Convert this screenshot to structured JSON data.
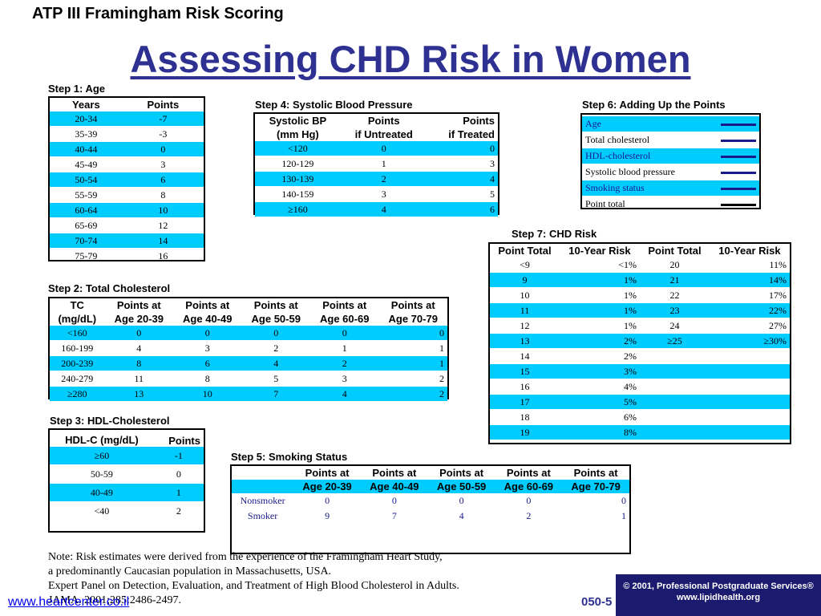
{
  "header": "ATP III Framingham Risk Scoring",
  "title": "Assessing CHD Risk in Women",
  "step1": {
    "label": "Step 1: Age",
    "headers": [
      "Years",
      "Points"
    ],
    "rows": [
      [
        "20-34",
        "-7"
      ],
      [
        "35-39",
        "-3"
      ],
      [
        "40-44",
        "0"
      ],
      [
        "45-49",
        "3"
      ],
      [
        "50-54",
        "6"
      ],
      [
        "55-59",
        "8"
      ],
      [
        "60-64",
        "10"
      ],
      [
        "65-69",
        "12"
      ],
      [
        "70-74",
        "14"
      ],
      [
        "75-79",
        "16"
      ]
    ]
  },
  "step2": {
    "label": "Step 2: Total Cholesterol",
    "headers_line1": [
      "TC",
      "Points at",
      "Points at",
      "Points at",
      "Points at",
      "Points at"
    ],
    "headers_line2": [
      "(mg/dL)",
      "Age 20-39",
      "Age 40-49",
      "Age 50-59",
      "Age 60-69",
      "Age 70-79"
    ],
    "rows": [
      [
        "<160",
        "0",
        "0",
        "0",
        "0",
        "0"
      ],
      [
        "160-199",
        "4",
        "3",
        "2",
        "1",
        "1"
      ],
      [
        "200-239",
        "8",
        "6",
        "4",
        "2",
        "1"
      ],
      [
        "240-279",
        "11",
        "8",
        "5",
        "3",
        "2"
      ],
      [
        "≥280",
        "13",
        "10",
        "7",
        "4",
        "2"
      ]
    ]
  },
  "step3": {
    "label": "Step 3: HDL-Cholesterol",
    "headers": [
      "HDL-C (mg/dL)",
      "Points"
    ],
    "rows": [
      [
        "≥60",
        "-1"
      ],
      [
        "50-59",
        "0"
      ],
      [
        "40-49",
        "1"
      ],
      [
        "<40",
        "2"
      ]
    ]
  },
  "step4": {
    "label": "Step 4: Systolic Blood Pressure",
    "headers_line1": [
      "Systolic BP",
      "Points",
      "Points"
    ],
    "headers_line2": [
      "(mm Hg)",
      "if Untreated",
      "if Treated"
    ],
    "rows": [
      [
        "<120",
        "0",
        "0"
      ],
      [
        "120-129",
        "1",
        "3"
      ],
      [
        "130-139",
        "2",
        "4"
      ],
      [
        "140-159",
        "3",
        "5"
      ],
      [
        "≥160",
        "4",
        "6"
      ]
    ]
  },
  "step5": {
    "label": "Step 5: Smoking Status",
    "headers_line1": [
      "",
      "Points at",
      "Points at",
      "Points at",
      "Points at",
      "Points at"
    ],
    "headers_line2": [
      "",
      "Age 20-39",
      "Age 40-49",
      "Age 50-59",
      "Age 60-69",
      "Age 70-79"
    ],
    "rows": [
      [
        "Nonsmoker",
        "0",
        "0",
        "0",
        "0",
        "0"
      ],
      [
        "Smoker",
        "9",
        "7",
        "4",
        "2",
        "1"
      ]
    ]
  },
  "step6": {
    "label": "Step 6: Adding Up the Points",
    "items": [
      "Age",
      "Total cholesterol",
      "HDL-cholesterol",
      "Systolic blood pressure",
      "Smoking status",
      "Point total"
    ]
  },
  "step7": {
    "label": "Step 7: CHD Risk",
    "headers": [
      "Point Total",
      "10-Year Risk",
      "Point Total",
      "10-Year Risk"
    ],
    "rows": [
      [
        "<9",
        "<1%",
        "20",
        "11%"
      ],
      [
        "9",
        "1%",
        "21",
        "14%"
      ],
      [
        "10",
        "1%",
        "22",
        "17%"
      ],
      [
        "11",
        "1%",
        "23",
        "22%"
      ],
      [
        "12",
        "1%",
        "24",
        "27%"
      ],
      [
        "13",
        "2%",
        "≥25",
        "≥30%"
      ],
      [
        "14",
        "2%",
        "",
        ""
      ],
      [
        "15",
        "3%",
        "",
        ""
      ],
      [
        "16",
        "4%",
        "",
        ""
      ],
      [
        "17",
        "5%",
        "",
        ""
      ],
      [
        "18",
        "6%",
        "",
        ""
      ],
      [
        "19",
        "8%",
        "",
        ""
      ]
    ]
  },
  "note": [
    "Note: Risk estimates were derived from the experience of the Framingham Heart Study,",
    "a predominantly Caucasian population in Massachusetts, USA.",
    "Expert Panel on Detection, Evaluation, and Treatment of High Blood Cholesterol in Adults.",
    "JAMA. 2001;285:2486-2497."
  ],
  "footer": {
    "copyright": "© 2001, Professional Postgraduate Services®",
    "site": "www.lipidhealth.org",
    "code": "050-5",
    "url": "www.heartcenter.co.il"
  },
  "colors": {
    "title": "#2e3192",
    "row_highlight": "#00ccff",
    "footer_bg": "#1a1a6e"
  }
}
